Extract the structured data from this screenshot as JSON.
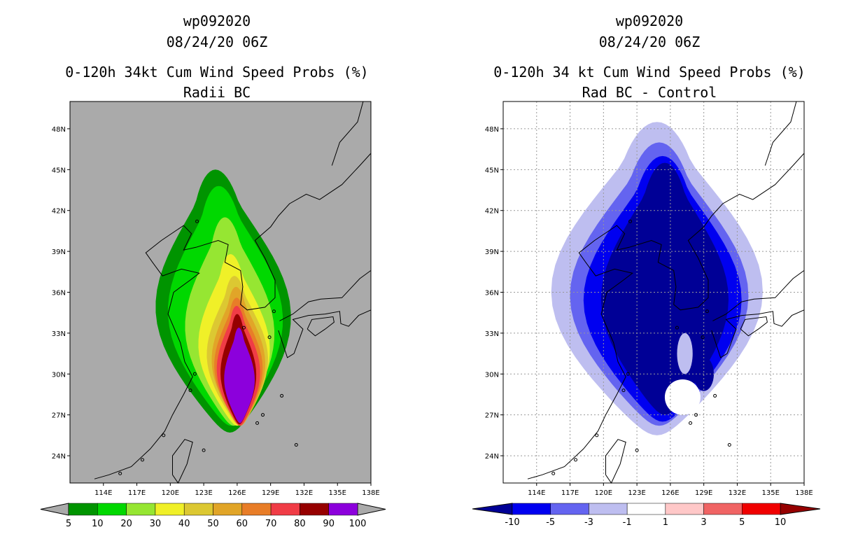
{
  "chart_data": [
    {
      "type": "heatmap",
      "storm_id": "wp092020",
      "datetime": "08/24/20 06Z",
      "title": "0-120h 34kt Cum Wind Speed Probs (%)",
      "subtitle": "Radii BC",
      "background_color": "#aaaaaa",
      "lon_ticks": [
        "114E",
        "117E",
        "120E",
        "123E",
        "126E",
        "129E",
        "132E",
        "135E",
        "138E"
      ],
      "lat_ticks": [
        "24N",
        "27N",
        "30N",
        "33N",
        "36N",
        "39N",
        "42N",
        "45N",
        "48N"
      ],
      "xlim": [
        111,
        138
      ],
      "ylim": [
        22,
        50
      ],
      "grid": false,
      "colorbar": {
        "labels": [
          "5",
          "10",
          "20",
          "30",
          "40",
          "50",
          "60",
          "70",
          "80",
          "90",
          "100"
        ],
        "colors": [
          "#009400",
          "#00d800",
          "#96e632",
          "#f0f028",
          "#dcc832",
          "#e1a528",
          "#e87d28",
          "#f03c46",
          "#960000",
          "#8c00dc"
        ]
      },
      "contours": [
        {
          "level": 5,
          "color": "#009400",
          "center": [
            124.7,
            36.5
          ],
          "half_width_deg": 5.3,
          "top": 45.0,
          "bottom": 25.7,
          "lean_deg": 1.3
        },
        {
          "level": 10,
          "color": "#00d800",
          "center": [
            124.9,
            35.8
          ],
          "half_width_deg": 4.5,
          "top": 43.8,
          "bottom": 26.2,
          "lean_deg": 1.1
        },
        {
          "level": 20,
          "color": "#96e632",
          "center": [
            125.3,
            34.8
          ],
          "half_width_deg": 3.5,
          "top": 41.5,
          "bottom": 26.2,
          "lean_deg": 0.8
        },
        {
          "level": 30,
          "color": "#f0f028",
          "center": [
            125.7,
            33.6
          ],
          "half_width_deg": 2.8,
          "top": 38.8,
          "bottom": 26.2,
          "lean_deg": 0.6
        },
        {
          "level": 40,
          "color": "#dcc832",
          "center": [
            126.0,
            32.8
          ],
          "half_width_deg": 2.4,
          "top": 37.2,
          "bottom": 26.2,
          "lean_deg": 0.5
        },
        {
          "level": 50,
          "color": "#e1a528",
          "center": [
            126.1,
            32.3
          ],
          "half_width_deg": 2.1,
          "top": 36.4,
          "bottom": 26.2,
          "lean_deg": 0.4
        },
        {
          "level": 60,
          "color": "#e87d28",
          "center": [
            126.1,
            31.8
          ],
          "half_width_deg": 1.9,
          "top": 35.6,
          "bottom": 26.2,
          "lean_deg": 0.3
        },
        {
          "level": 70,
          "color": "#f03c46",
          "center": [
            126.1,
            31.3
          ],
          "half_width_deg": 1.7,
          "top": 35.0,
          "bottom": 26.2,
          "lean_deg": 0.3
        },
        {
          "level": 80,
          "color": "#960000",
          "center": [
            126.1,
            30.6
          ],
          "half_width_deg": 1.4,
          "top": 34.4,
          "bottom": 26.3,
          "lean_deg": 0.2
        },
        {
          "level": 90,
          "color": "#8c00dc",
          "center": [
            126.2,
            29.8
          ],
          "half_width_deg": 1.2,
          "top": 33.4,
          "bottom": 26.4,
          "lean_deg": 0.1
        }
      ]
    },
    {
      "type": "heatmap",
      "storm_id": "wp092020",
      "datetime": "08/24/20 06Z",
      "title": "0-120h 34 kt Cum Wind Speed Probs (%)",
      "subtitle": "Rad BC - Control",
      "background_color": "#ffffff",
      "lon_ticks": [
        "114E",
        "117E",
        "120E",
        "123E",
        "126E",
        "129E",
        "132E",
        "135E",
        "138E"
      ],
      "lat_ticks": [
        "24N",
        "27N",
        "30N",
        "33N",
        "36N",
        "39N",
        "42N",
        "45N",
        "48N"
      ],
      "xlim": [
        111,
        138
      ],
      "ylim": [
        22,
        50
      ],
      "grid": true,
      "colorbar": {
        "labels": [
          "-10",
          "-5",
          "-3",
          "-1",
          "1",
          "3",
          "5",
          "10"
        ],
        "colors": [
          "#000096",
          "#0000f0",
          "#6464f0",
          "#bebef0",
          "#ffffff",
          "#ffc8c8",
          "#f06464",
          "#f00000",
          "#960000"
        ]
      },
      "contours": [
        {
          "level": -1,
          "color": "#bebef0",
          "center": [
            124.8,
            37.2
          ],
          "half_width_deg": 8.3,
          "top": 48.5,
          "bottom": 25.5,
          "lean_deg": 0
        },
        {
          "level": -3,
          "color": "#6464f0",
          "center": [
            125.0,
            37.5
          ],
          "half_width_deg": 7.0,
          "top": 47.0,
          "bottom": 26.2,
          "lean_deg": 0
        },
        {
          "level": -5,
          "color": "#0000f0",
          "center": [
            125.3,
            37.4
          ],
          "half_width_deg": 6.2,
          "top": 46.0,
          "bottom": 26.5,
          "lean_deg": 0
        },
        {
          "level": -10,
          "color": "#000096",
          "center": [
            125.5,
            37.6
          ],
          "half_width_deg": 5.0,
          "top": 45.5,
          "bottom": 27.0,
          "lean_deg": 0
        }
      ]
    }
  ]
}
